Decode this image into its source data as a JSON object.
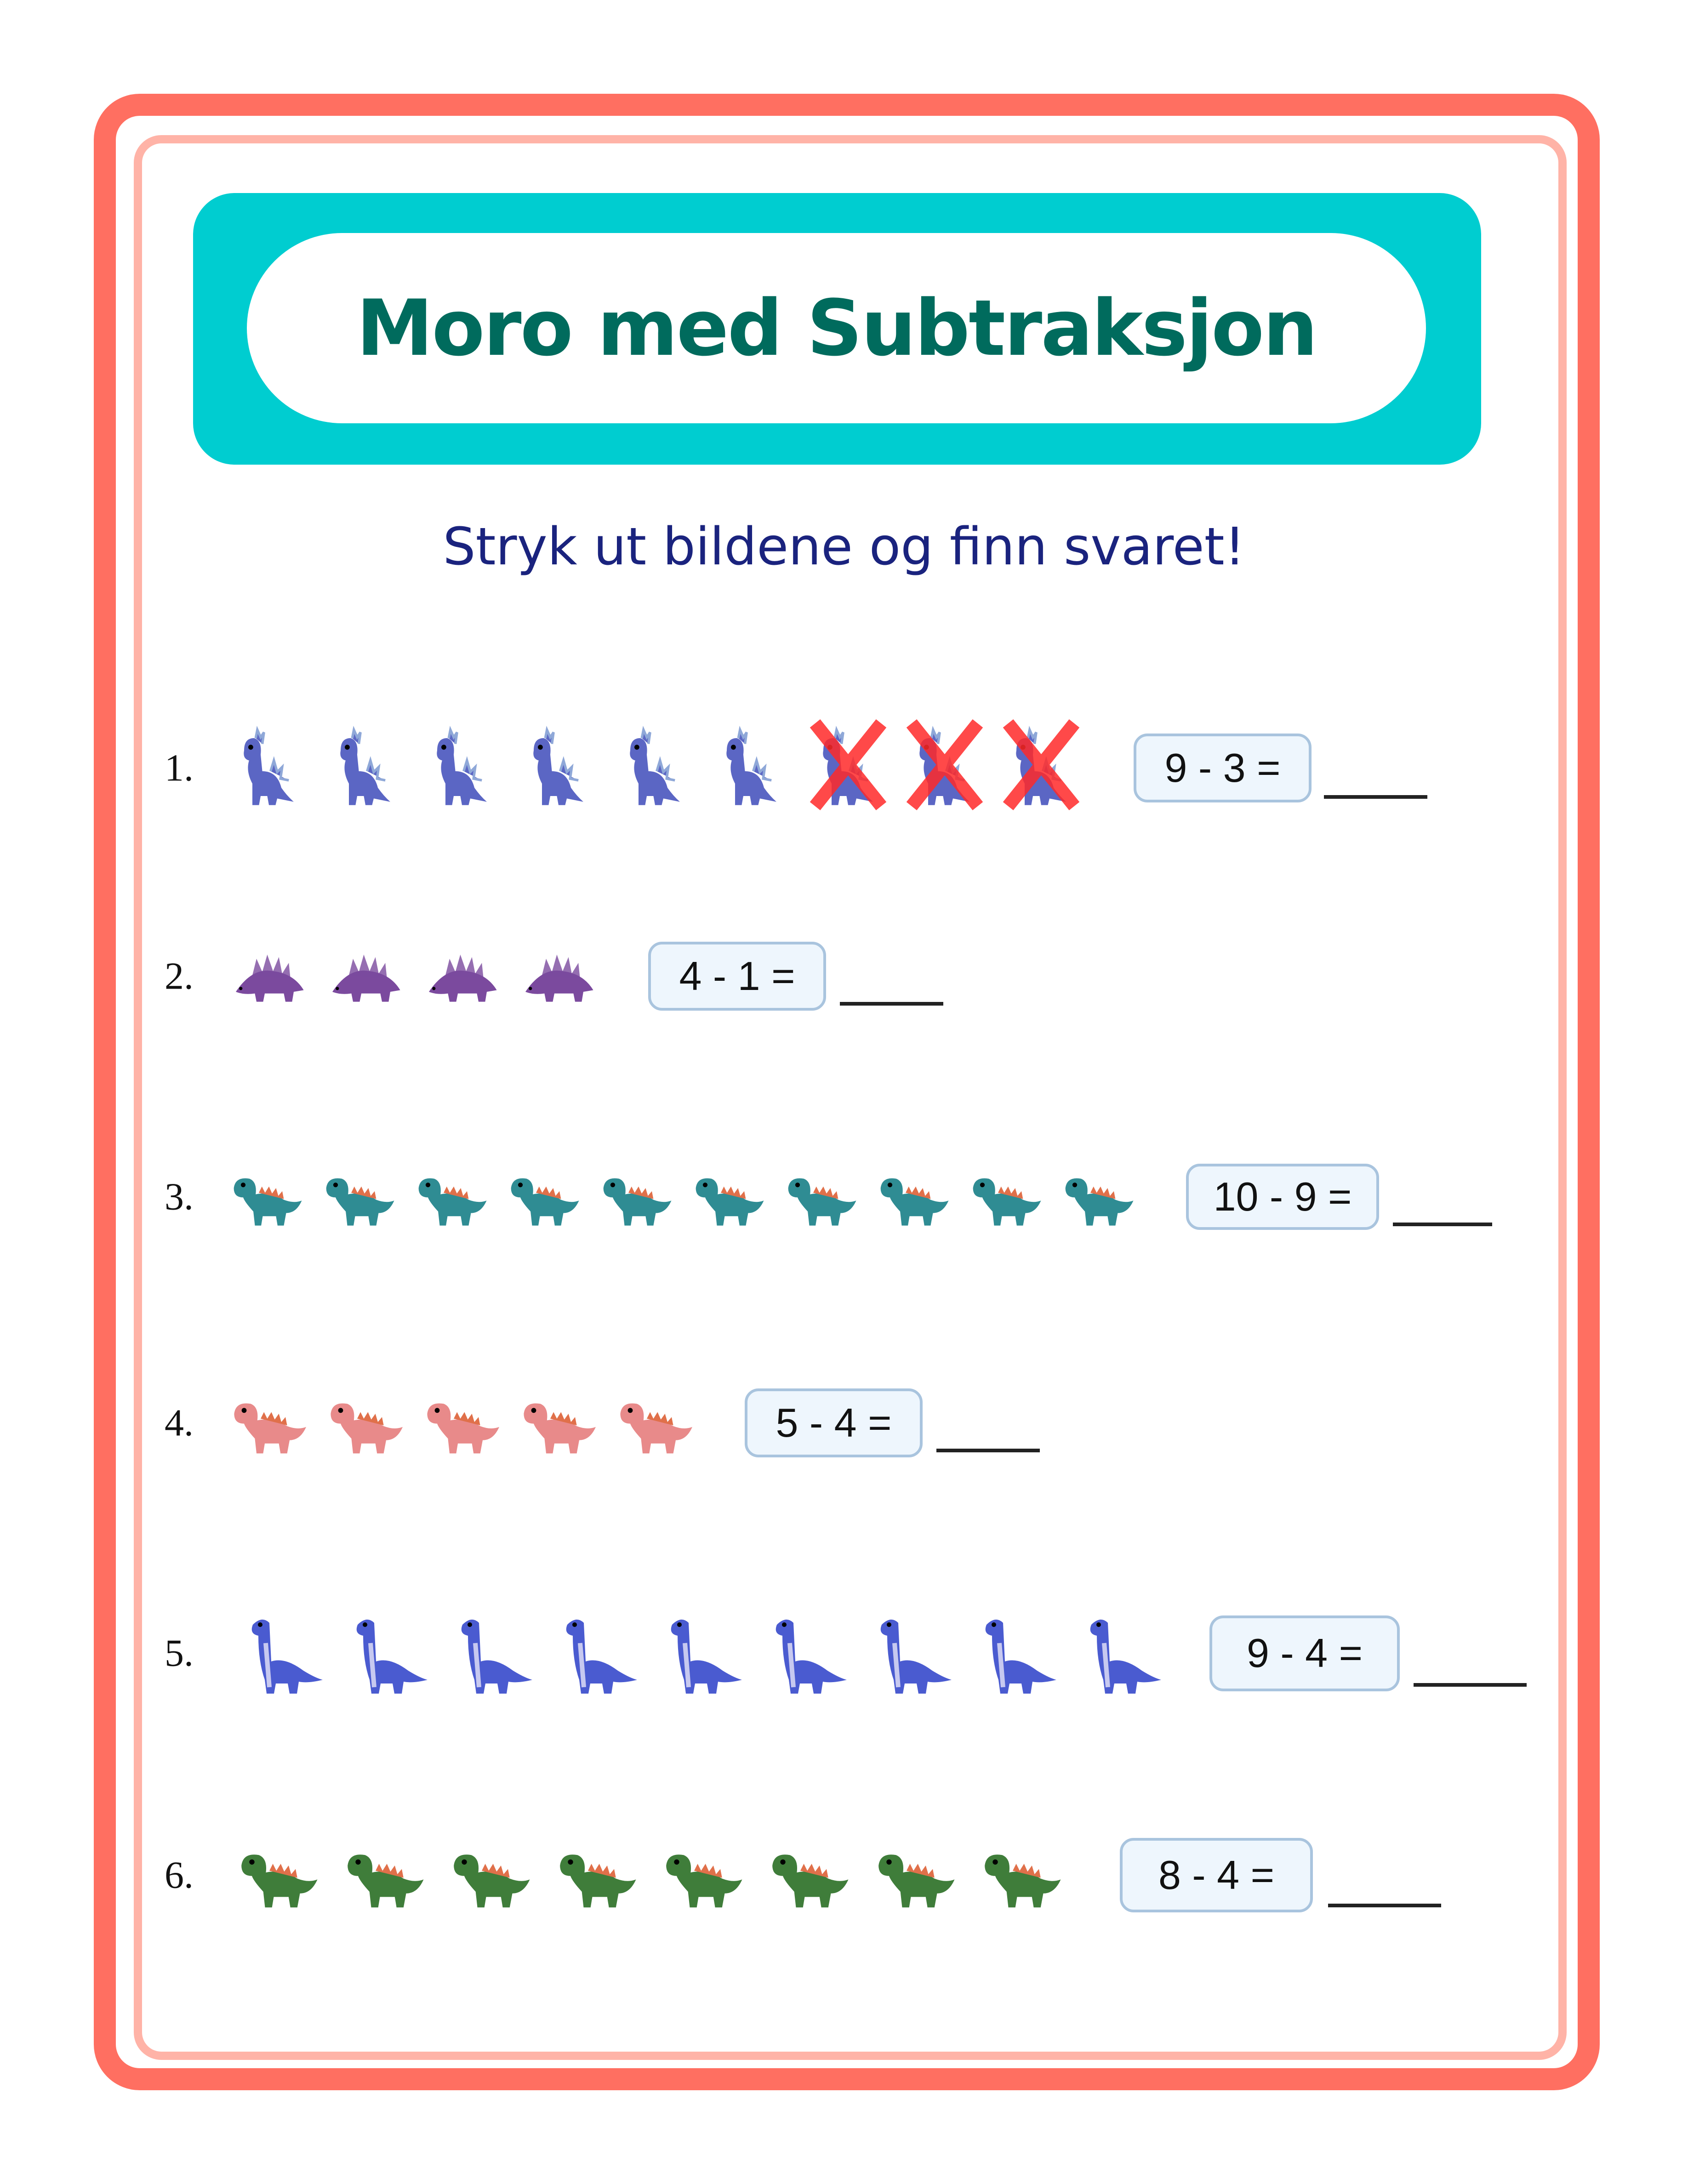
{
  "title": "Moro med Subtraksjon",
  "subtitle": "Stryk ut bildene og finn svaret!",
  "colors": {
    "outer_border": "#ff6f61",
    "inner_border": "#ffb3a7",
    "banner": "#00cdd0",
    "title": "#006b5d",
    "subtitle": "#1a237e",
    "cross": "#ff2a2a"
  },
  "problems": [
    {
      "number": "1.",
      "equation": "9 - 3 =",
      "picture_count": 9,
      "crossed_out": 3,
      "icon": "blue-spiky-dino-icon",
      "color": "#5b66c4"
    },
    {
      "number": "2.",
      "equation": "4 - 1 =",
      "picture_count": 4,
      "crossed_out": 0,
      "icon": "purple-stegosaurus-icon",
      "color": "#7b4a9e"
    },
    {
      "number": "3.",
      "equation": "10 - 9 =",
      "picture_count": 10,
      "crossed_out": 0,
      "icon": "teal-dino-icon",
      "color": "#2f8c93"
    },
    {
      "number": "4.",
      "equation": "5 - 4 =",
      "picture_count": 5,
      "crossed_out": 0,
      "icon": "pink-dino-icon",
      "color": "#e88a8a"
    },
    {
      "number": "5.",
      "equation": "9 - 4 =",
      "picture_count": 9,
      "crossed_out": 0,
      "icon": "blue-brachiosaurus-icon",
      "color": "#4a5bd0"
    },
    {
      "number": "6.",
      "equation": "8 - 4 =",
      "picture_count": 8,
      "crossed_out": 0,
      "icon": "green-dino-icon",
      "color": "#3f7d3a"
    }
  ]
}
